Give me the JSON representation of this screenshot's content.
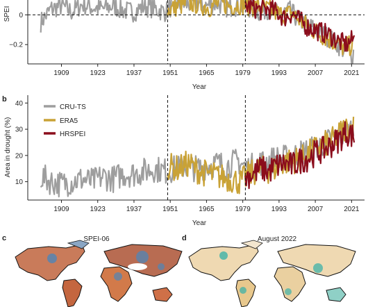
{
  "panels": {
    "a": {
      "letter": ""
    },
    "b": {
      "letter": "b"
    },
    "c": {
      "letter": "c",
      "title": "SPEI-06"
    },
    "d": {
      "letter": "d",
      "title": "August 2022"
    }
  },
  "colors": {
    "cru": "#9e9e9e",
    "era5": "#c9a236",
    "hrspei": "#8b0d1c",
    "axis": "#222222",
    "dry": "#d4623a",
    "wet": "#4f86b8",
    "aug_dry": "#e9c98e",
    "aug_wet": "#3fb2a8",
    "land": "#f3e6cf"
  },
  "chart_data": [
    {
      "type": "line",
      "panel": "a",
      "title": "",
      "xlabel": "Year",
      "ylabel": "SPEI",
      "xlim": [
        1896,
        2026
      ],
      "ylim": [
        -0.33,
        0.1
      ],
      "xticks": [
        1909,
        1923,
        1937,
        1951,
        1965,
        1979,
        1993,
        2007,
        2021
      ],
      "yticks": [
        0,
        -0.2
      ],
      "ytick_labels": [
        "0",
        "−0.2"
      ],
      "reference_lines": {
        "horizontal_y": 0,
        "vertical_x": [
          1950,
          1980
        ]
      },
      "series": [
        {
          "name": "CRU-TS",
          "color": "#9e9e9e",
          "x": [
            1901,
            1905,
            1909,
            1913,
            1917,
            1921,
            1925,
            1929,
            1933,
            1937,
            1941,
            1945,
            1949,
            1953,
            1957,
            1961,
            1965,
            1969,
            1973,
            1977,
            1981,
            1985,
            1989,
            1993,
            1997,
            2001,
            2005,
            2009,
            2013,
            2017,
            2021,
            2022
          ],
          "values": [
            -0.05,
            0.04,
            0.06,
            0.02,
            0.07,
            0.05,
            0.04,
            0.06,
            0.03,
            0.02,
            0.06,
            0.04,
            0.02,
            0.08,
            0.07,
            0.08,
            0.06,
            0.08,
            0.05,
            0.06,
            0.05,
            0.02,
            0.04,
            0.0,
            0.03,
            -0.04,
            -0.08,
            -0.12,
            -0.16,
            -0.22,
            -0.28,
            -0.24
          ]
        },
        {
          "name": "ERA5",
          "color": "#c9a236",
          "x": [
            1950,
            1954,
            1958,
            1962,
            1966,
            1970,
            1974,
            1978,
            1982,
            1986,
            1990,
            1994,
            1998,
            2002,
            2006,
            2010,
            2014,
            2018,
            2022
          ],
          "values": [
            0.03,
            0.06,
            0.08,
            0.07,
            0.05,
            0.08,
            0.06,
            0.07,
            0.06,
            0.05,
            0.03,
            0.0,
            0.01,
            -0.05,
            -0.1,
            -0.14,
            -0.18,
            -0.22,
            -0.2
          ]
        },
        {
          "name": "HRSPEI",
          "color": "#8b0d1c",
          "x": [
            1980,
            1983,
            1986,
            1989,
            1992,
            1995,
            1998,
            2001,
            2004,
            2007,
            2010,
            2013,
            2016,
            2019,
            2022
          ],
          "values": [
            0.06,
            0.05,
            0.03,
            0.04,
            0.02,
            -0.02,
            0.01,
            -0.04,
            -0.08,
            -0.1,
            -0.12,
            -0.14,
            -0.18,
            -0.2,
            -0.16
          ]
        }
      ]
    },
    {
      "type": "line",
      "panel": "b",
      "title": "",
      "xlabel": "Year",
      "ylabel": "Area in drought (%)",
      "xlim": [
        1896,
        2026
      ],
      "ylim": [
        3,
        43
      ],
      "xticks": [
        1909,
        1923,
        1937,
        1951,
        1965,
        1979,
        1993,
        2007,
        2021
      ],
      "yticks": [
        10,
        20,
        30,
        40
      ],
      "reference_lines": {
        "vertical_x": [
          1950,
          1980
        ]
      },
      "legend": {
        "position": "top-left",
        "entries": [
          "CRU-TS",
          "ERA5",
          "HRSPEI"
        ]
      },
      "series": [
        {
          "name": "CRU-TS",
          "color": "#9e9e9e",
          "x": [
            1901,
            1905,
            1909,
            1913,
            1917,
            1921,
            1925,
            1929,
            1933,
            1937,
            1941,
            1945,
            1949,
            1953,
            1957,
            1961,
            1965,
            1969,
            1973,
            1977,
            1981,
            1985,
            1989,
            1993,
            1997,
            2001,
            2005,
            2009,
            2013,
            2017,
            2021,
            2022
          ],
          "values": [
            12,
            10,
            9,
            10,
            11,
            10,
            12,
            11,
            13,
            13,
            14,
            15,
            14,
            15,
            16,
            15,
            16,
            17,
            16,
            18,
            15,
            17,
            18,
            19,
            19,
            21,
            22,
            24,
            26,
            28,
            30,
            28
          ]
        },
        {
          "name": "ERA5",
          "color": "#c9a236",
          "x": [
            1950,
            1954,
            1958,
            1962,
            1966,
            1970,
            1974,
            1978,
            1982,
            1986,
            1990,
            1994,
            1998,
            2002,
            2006,
            2010,
            2014,
            2018,
            2022
          ],
          "values": [
            16,
            15,
            17,
            14,
            13,
            12,
            11,
            10,
            13,
            15,
            14,
            17,
            18,
            19,
            22,
            24,
            26,
            30,
            31
          ]
        },
        {
          "name": "HRSPEI",
          "color": "#8b0d1c",
          "x": [
            1980,
            1983,
            1986,
            1989,
            1992,
            1995,
            1998,
            2001,
            2004,
            2007,
            2010,
            2013,
            2016,
            2019,
            2022
          ],
          "values": [
            12,
            13,
            15,
            14,
            16,
            17,
            16,
            18,
            19,
            21,
            22,
            24,
            26,
            29,
            27
          ]
        }
      ]
    }
  ]
}
